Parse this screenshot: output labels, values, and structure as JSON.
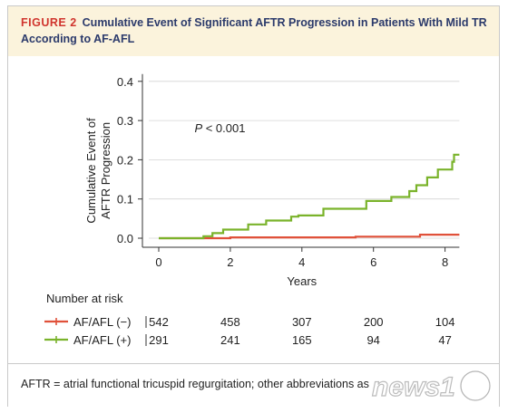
{
  "figure": {
    "label": "FIGURE 2",
    "title_line1": "Cumulative Event of Significant AFTR Progression in Patients With Mild TR",
    "title_line2": "According to AF-AFL"
  },
  "footnote": "AFTR = atrial functional tricuspid regurgitation; other abbreviations as",
  "watermark_text": "news1",
  "colors": {
    "red": "#e0513a",
    "green": "#7ab32b",
    "title": "#2b3a6b",
    "label": "#d0352e"
  },
  "chart_data": {
    "type": "line",
    "title": "",
    "xlabel": "Years",
    "ylabel_lines": [
      "Cumulative Event of",
      "AFTR Progression"
    ],
    "xlim": [
      0,
      8.4
    ],
    "ylim": [
      0,
      0.4
    ],
    "x_ticks": [
      0,
      2,
      4,
      6,
      8
    ],
    "y_ticks": [
      0.0,
      0.1,
      0.2,
      0.3,
      0.4
    ],
    "x_tick_labels": [
      "0",
      "2",
      "4",
      "6",
      "8"
    ],
    "y_tick_labels": [
      "0.0",
      "0.1",
      "0.2",
      "0.3",
      "0.4"
    ],
    "annotation": "P < 0.001",
    "annotation_parts": {
      "p": "P",
      "rest": " < 0.001"
    },
    "series": [
      {
        "name": "AF/AFL (−)",
        "color": "#e0513a",
        "x": [
          0,
          1.3,
          2.0,
          3.5,
          5.5,
          7.2,
          7.3,
          8.4
        ],
        "y": [
          0,
          0,
          0.002,
          0.002,
          0.004,
          0.004,
          0.009,
          0.009
        ]
      },
      {
        "name": "AF/AFL (+)",
        "color": "#7ab32b",
        "x": [
          0,
          1.2,
          1.25,
          1.5,
          1.8,
          2.5,
          3.0,
          3.7,
          3.9,
          4.6,
          5.8,
          6.5,
          7.0,
          7.2,
          7.5,
          7.8,
          8.2,
          8.25,
          8.4
        ],
        "y": [
          0,
          0,
          0.005,
          0.013,
          0.022,
          0.035,
          0.045,
          0.055,
          0.058,
          0.075,
          0.095,
          0.105,
          0.12,
          0.135,
          0.155,
          0.175,
          0.195,
          0.213,
          0.213
        ]
      }
    ],
    "risk_table": {
      "title": "Number at risk",
      "timepoints": [
        0,
        2,
        4,
        6,
        8
      ],
      "rows": [
        {
          "label": "AF/AFL (−)",
          "color": "#e0513a",
          "values": [
            "542",
            "458",
            "307",
            "200",
            "104"
          ]
        },
        {
          "label": "AF/AFL (+)",
          "color": "#7ab32b",
          "values": [
            "291",
            "241",
            "165",
            "94",
            "47"
          ]
        }
      ]
    }
  }
}
